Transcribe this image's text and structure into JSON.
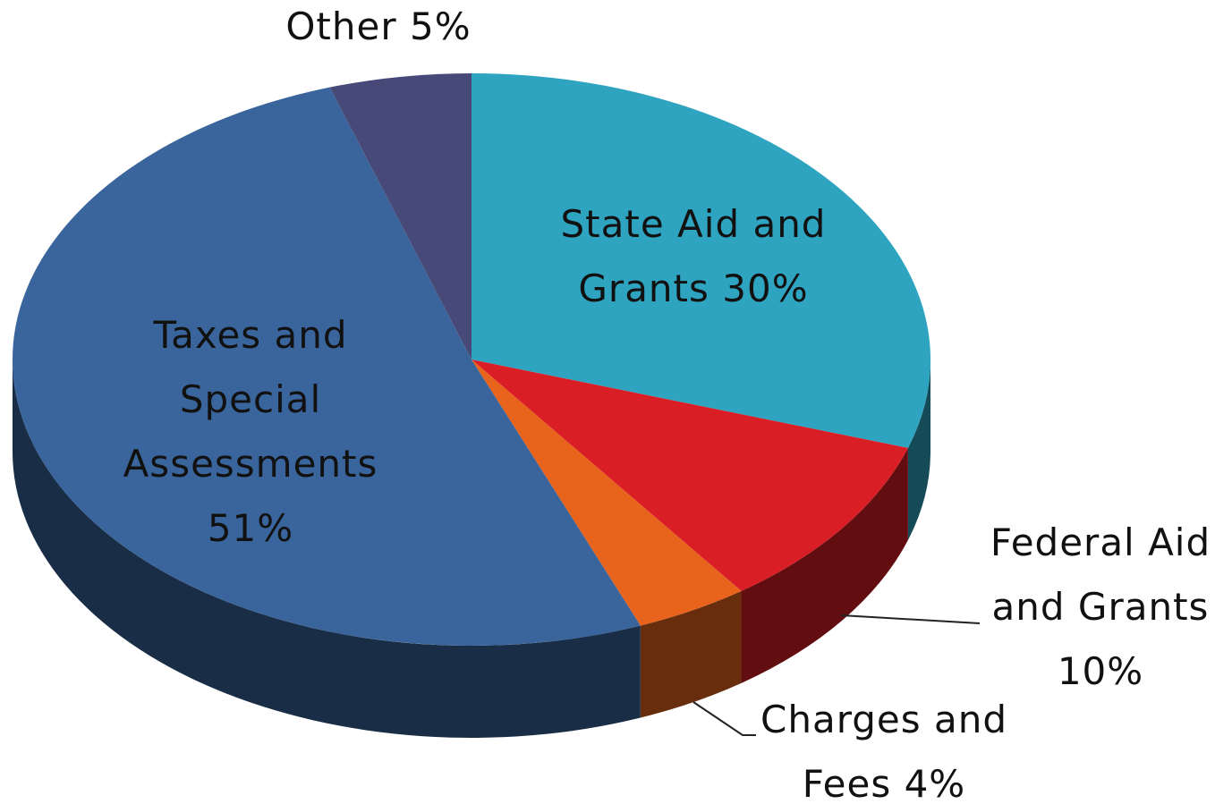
{
  "chart_data": {
    "type": "pie",
    "categories": [
      "State Aid and Grants",
      "Federal Aid and Grants",
      "Charges and Fees",
      "Taxes and Special Assessments",
      "Other"
    ],
    "values": [
      30,
      10,
      4,
      51,
      5
    ],
    "value_labels": [
      "30%",
      "10%",
      "4%",
      "51%",
      "5%"
    ],
    "colors": [
      "#2ea4c1",
      "#d91e26",
      "#e8641c",
      "#3a659c",
      "#474a78"
    ]
  }
}
